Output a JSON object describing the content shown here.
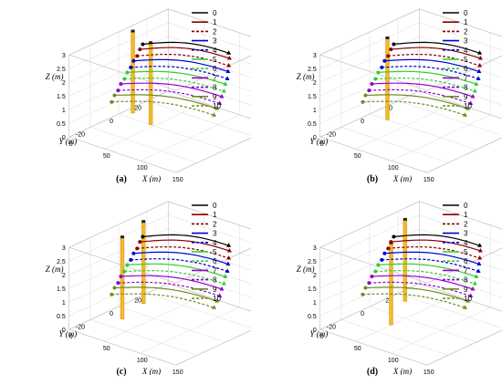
{
  "chart_data": [
    {
      "type": "line",
      "panel_label": "(a)",
      "xlabel": "X (m)",
      "ylabel": "Y (m)",
      "zlabel": "Z (m)",
      "xticks": [
        0,
        50,
        100,
        150
      ],
      "yticks": [
        20,
        0,
        -20
      ],
      "zticks": [
        0,
        0.5,
        1,
        1.5,
        2,
        2.5,
        3
      ],
      "xlim": [
        -10,
        160
      ],
      "ylim": [
        -35,
        35
      ],
      "zlim": [
        0,
        3
      ],
      "obstacles": [
        {
          "x": 10,
          "y": 5,
          "height": 3
        },
        {
          "x": 45,
          "y": 0,
          "height": 3
        }
      ]
    },
    {
      "type": "line",
      "panel_label": "(b)",
      "xlabel": "X (m)",
      "ylabel": "Y (m)",
      "zlabel": "Z (m)",
      "xticks": [
        0,
        50,
        100,
        150
      ],
      "yticks": [
        20,
        0,
        -20
      ],
      "zticks": [
        0,
        0.5,
        1,
        1.5,
        2,
        2.5,
        3
      ],
      "xlim": [
        -10,
        160
      ],
      "ylim": [
        -35,
        35
      ],
      "zlim": [
        0,
        3
      ],
      "obstacles": [
        {
          "x": 25,
          "y": 0,
          "height": 3
        }
      ]
    },
    {
      "type": "line",
      "panel_label": "(c)",
      "xlabel": "X (m)",
      "ylabel": "Y (m)",
      "zlabel": "Z (m)",
      "xticks": [
        0,
        50,
        100,
        150
      ],
      "yticks": [
        20,
        0,
        -20
      ],
      "zticks": [
        0,
        0.5,
        1,
        1.5,
        2,
        2.5,
        3
      ],
      "xlim": [
        -10,
        160
      ],
      "ylim": [
        -35,
        35
      ],
      "zlim": [
        0,
        3
      ],
      "obstacles": [
        {
          "x": 15,
          "y": 10,
          "height": 3
        },
        {
          "x": 25,
          "y": -10,
          "height": 3
        }
      ]
    },
    {
      "type": "line",
      "panel_label": "(d)",
      "xlabel": "X (m)",
      "ylabel": "Y (m)",
      "zlabel": "Z (m)",
      "xticks": [
        0,
        50,
        100,
        150
      ],
      "yticks": [
        20,
        0,
        -20
      ],
      "zticks": [
        0,
        0.5,
        1,
        1.5,
        2,
        2.5,
        3
      ],
      "xlim": [
        -10,
        160
      ],
      "ylim": [
        -35,
        35
      ],
      "zlim": [
        0,
        3
      ],
      "obstacles": [
        {
          "x": 20,
          "y": 15,
          "height": 3
        },
        {
          "x": 50,
          "y": -10,
          "height": 3
        }
      ]
    }
  ],
  "legend": {
    "placement": "top-right",
    "entries": [
      {
        "label": "0",
        "color": "#000000",
        "style": "solid"
      },
      {
        "label": "1",
        "color": "#8b0000",
        "style": "solid"
      },
      {
        "label": "2",
        "color": "#8b0000",
        "style": "dashed"
      },
      {
        "label": "3",
        "color": "#0000cd",
        "style": "solid"
      },
      {
        "label": "4",
        "color": "#0000cd",
        "style": "dashed"
      },
      {
        "label": "5",
        "color": "#32cd32",
        "style": "solid"
      },
      {
        "label": "6",
        "color": "#32cd32",
        "style": "dashed"
      },
      {
        "label": "7",
        "color": "#9400d3",
        "style": "solid"
      },
      {
        "label": "8",
        "color": "#9400d3",
        "style": "dashed"
      },
      {
        "label": "9",
        "color": "#6b8e23",
        "style": "solid"
      },
      {
        "label": "10",
        "color": "#6b8e23",
        "style": "dashed"
      }
    ]
  },
  "colors": {
    "obstacle": "#f2b92a",
    "obstacle_edge": "#c58f0d",
    "grid": "#dcdcdc",
    "axis": "#444444"
  }
}
